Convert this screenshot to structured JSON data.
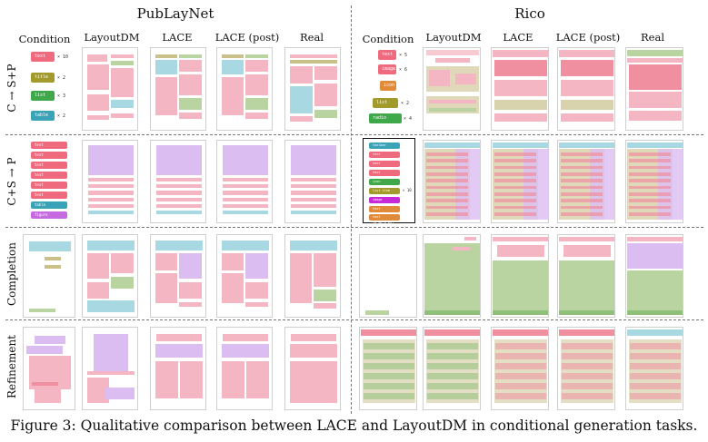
{
  "header": {
    "left_title": "PubLayNet",
    "right_title": "Rico"
  },
  "columns": {
    "publaynet": [
      "Condition",
      "LayoutDM",
      "LACE",
      "LACE (post)",
      "Real"
    ],
    "rico": [
      "Condition",
      "LayoutDM",
      "LACE",
      "LACE (post)",
      "Real"
    ]
  },
  "rows": [
    "C → S+P",
    "C+S → P",
    "Completion",
    "Refinement"
  ],
  "caption": "Figure 3: Qualitative comparison between LACE and LayoutDM in conditional generation tasks.",
  "colors": {
    "text": "#f08a97",
    "title": "#a39a2c",
    "list": "#3fa84a",
    "table": "#3aa3b8",
    "figure": "#d9b5f0",
    "toolbar": "#e08a3a",
    "pink": "#f4b6c2",
    "green": "#b9d4a0",
    "blue": "#a8d8e2"
  },
  "cond_c_publaynet": [
    {
      "label": "text",
      "count": "× 10",
      "color": "#f06a7e"
    },
    {
      "label": "title",
      "count": "× 2",
      "color": "#a39a2c"
    },
    {
      "label": "list",
      "count": "× 3",
      "color": "#3fa84a"
    },
    {
      "label": "table",
      "count": "× 2",
      "color": "#3aa3b8"
    }
  ],
  "cond_c_rico": [
    {
      "label": "text",
      "count": "× 5",
      "color": "#f06a7e"
    },
    {
      "label": "image",
      "count": "× 6",
      "color": "#f06a7e"
    },
    {
      "label": "icon",
      "count": "",
      "color": "#e08a3a"
    },
    {
      "label": "list item",
      "count": "× 2",
      "color": "#a39a2c"
    },
    {
      "label": "radio button",
      "count": "× 4",
      "color": "#3fa84a"
    }
  ],
  "cond_cs_publaynet": [
    {
      "label": "text (0.80,0.04)",
      "color": "#f06a7e"
    },
    {
      "label": "text (0.80,0.03)",
      "color": "#f06a7e"
    },
    {
      "label": "text (0.80,0.04)",
      "color": "#f06a7e"
    },
    {
      "label": "text (0.80,0.04)",
      "color": "#f06a7e"
    },
    {
      "label": "text (0.80,0.04)",
      "color": "#f06a7e"
    },
    {
      "label": "text (0.80,0.04)",
      "color": "#f06a7e"
    },
    {
      "label": "table (0.80,0.03)",
      "color": "#3aa3b8"
    },
    {
      "label": "figure (0.80,0.26)",
      "color": "#c56ae0"
    }
  ],
  "cond_cs_rico": [
    {
      "label": "toolbar (1.00,0.07)",
      "color": "#3aa3b8"
    },
    {
      "label": "text (0.80,0.04)",
      "color": "#f06a7e"
    },
    {
      "label": "text (0.80,0.04)",
      "color": "#f06a7e"
    },
    {
      "label": "text (0.80,0.04)",
      "color": "#f06a7e"
    },
    {
      "label": "icon (0.08,0.04)",
      "color": "#3fa84a"
    },
    {
      "label": "list item (0.98,0.05)",
      "color": "#a39a2c",
      "count": "× 10"
    },
    {
      "label": "image (0.40,0.20)",
      "color": "#c62ad6"
    },
    {
      "label": "text (0.80,0.04)",
      "color": "#e08a3a"
    },
    {
      "label": "text (0.80,0.04)",
      "color": "#e08a3a"
    }
  ]
}
